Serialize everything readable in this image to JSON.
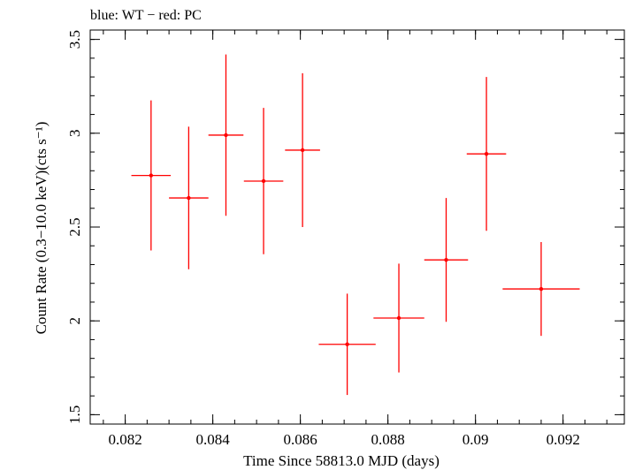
{
  "chart_data": {
    "type": "scatter",
    "title": "blue: WT − red: PC",
    "xlabel": "Time Since 58813.0 MJD (days)",
    "ylabel": "Count Rate (0.3−10.0 keV)(cts s⁻¹)",
    "xlim": [
      0.0812,
      0.0934
    ],
    "ylim": [
      1.45,
      3.55
    ],
    "x_ticks": [
      0.082,
      0.084,
      0.086,
      0.088,
      0.09,
      0.092
    ],
    "x_tick_labels": [
      "0.082",
      "0.084",
      "0.086",
      "0.088",
      "0.09",
      "0.092"
    ],
    "y_ticks": [
      1.5,
      2,
      2.5,
      3,
      3.5
    ],
    "y_tick_labels": [
      "1.5",
      "2",
      "2.5",
      "3",
      "3.5"
    ],
    "grid": false,
    "series": [
      {
        "color": "#ff0000",
        "points": [
          {
            "x": 0.08259,
            "y": 2.775,
            "xerr": 0.00045,
            "yerr": 0.4
          },
          {
            "x": 0.08345,
            "y": 2.655,
            "xerr": 0.00045,
            "yerr": 0.38
          },
          {
            "x": 0.0843,
            "y": 2.99,
            "xerr": 0.0004,
            "yerr": 0.43
          },
          {
            "x": 0.08516,
            "y": 2.745,
            "xerr": 0.00045,
            "yerr": 0.39
          },
          {
            "x": 0.08605,
            "y": 2.91,
            "xerr": 0.0004,
            "yerr": 0.41
          },
          {
            "x": 0.08707,
            "y": 1.875,
            "xerr": 0.00065,
            "yerr": 0.27
          },
          {
            "x": 0.08825,
            "y": 2.015,
            "xerr": 0.00058,
            "yerr": 0.29
          },
          {
            "x": 0.08933,
            "y": 2.325,
            "xerr": 0.0005,
            "yerr": 0.33
          },
          {
            "x": 0.09025,
            "y": 2.89,
            "xerr": 0.00045,
            "yerr": 0.41
          },
          {
            "x": 0.0915,
            "y": 2.17,
            "xerr": 0.00088,
            "yerr": 0.25
          }
        ]
      }
    ]
  }
}
